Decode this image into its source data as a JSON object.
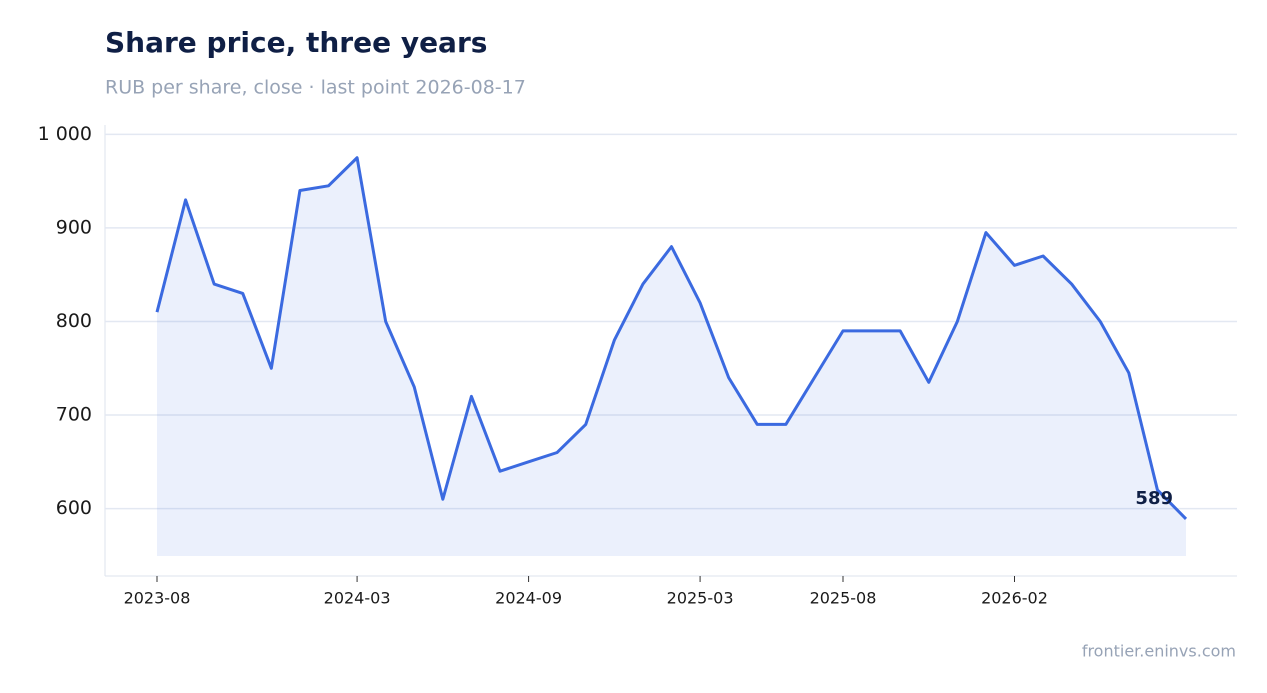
{
  "chart_data": {
    "type": "line",
    "title": "Share price, three years",
    "subtitle": "RUB per share, close · last point 2026-08-17",
    "source": "frontier.eninvs.com",
    "x": [
      "2023-08",
      "2023-09",
      "2023-10",
      "2023-11",
      "2023-12",
      "2024-01",
      "2024-02",
      "2024-03",
      "2024-04",
      "2024-05",
      "2024-06",
      "2024-07",
      "2024-08",
      "2024-09",
      "2024-10",
      "2024-11",
      "2024-12",
      "2025-01",
      "2025-02",
      "2025-03",
      "2025-04",
      "2025-05",
      "2025-06",
      "2025-07",
      "2025-08",
      "2025-09",
      "2025-10",
      "2025-11",
      "2025-12",
      "2026-01",
      "2026-02",
      "2026-03",
      "2026-04",
      "2026-05",
      "2026-06",
      "2026-07",
      "2026-08"
    ],
    "series": [
      {
        "name": "Share price",
        "color": "#3b6ae0",
        "values": [
          810,
          930,
          840,
          830,
          750,
          940,
          945,
          975,
          800,
          730,
          610,
          720,
          640,
          650,
          660,
          690,
          780,
          840,
          880,
          820,
          740,
          690,
          690,
          740,
          790,
          790,
          790,
          735,
          800,
          895,
          860,
          870,
          840,
          800,
          745,
          620,
          589
        ]
      }
    ],
    "xlim": [
      "2023-08",
      "2026-08"
    ],
    "xticks": [
      "2023-08",
      "2024-03",
      "2024-09",
      "2025-03",
      "2025-08",
      "2026-02"
    ],
    "ylim": [
      528,
      1010
    ],
    "yticks": [
      600,
      700,
      800,
      900,
      {
        "value": 1000,
        "label": "1 000"
      }
    ],
    "grid": true,
    "area_fill": true
  }
}
